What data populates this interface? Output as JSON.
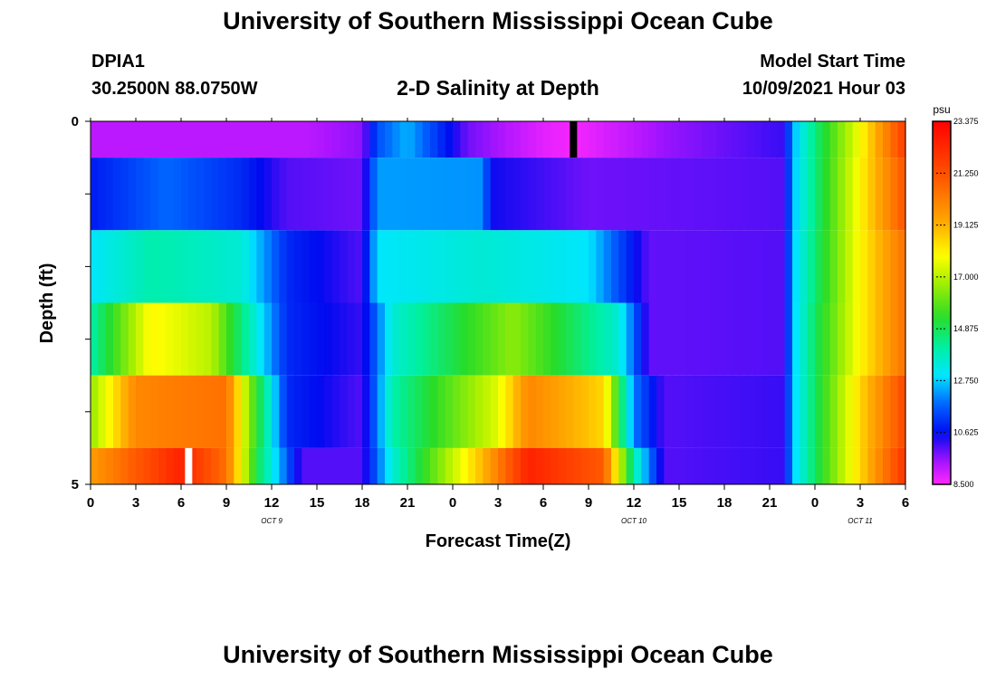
{
  "header": {
    "title": "University of Southern Mississippi Ocean Cube",
    "station": "DPIA1",
    "coords": "30.2500N  88.0750W",
    "model_label": "Model Start Time",
    "model_time": "10/09/2021 Hour 03"
  },
  "footer": {
    "title": "University of Southern Mississippi Ocean Cube"
  },
  "chart_data": {
    "type": "heatmap",
    "title": "2-D Salinity at Depth",
    "xlabel": "Forecast Time(Z)",
    "ylabel": "Depth (ft)",
    "x_hours": [
      0,
      54
    ],
    "x_tick_labels": [
      "0",
      "3",
      "6",
      "9",
      "12",
      "15",
      "18",
      "21",
      "0",
      "3",
      "6",
      "9",
      "12",
      "15",
      "18",
      "21",
      "0",
      "3",
      "6"
    ],
    "x_day_labels": [
      {
        "label": "OCT 9",
        "hour": 12
      },
      {
        "label": "OCT 10",
        "hour": 36
      },
      {
        "label": "OCT 11",
        "hour": 51
      }
    ],
    "y_tick_labels": [
      "0",
      "5"
    ],
    "ylim": [
      0,
      5
    ],
    "colorbar": {
      "unit": "psu",
      "labels": [
        "23.375",
        "21.250",
        "19.125",
        "17.000",
        "14.875",
        "12.750",
        "10.625",
        "8.500"
      ],
      "range": [
        8.5,
        23.375
      ]
    },
    "depth_layers": [
      {
        "depth_range": [
          0.0,
          0.5
        ],
        "keys": [
          [
            0,
            9.2
          ],
          [
            14,
            9.2
          ],
          [
            18,
            9.6
          ],
          [
            19,
            11.5
          ],
          [
            21,
            12.5
          ],
          [
            25,
            9.8
          ],
          [
            30,
            8.8
          ],
          [
            32,
            8.6
          ],
          [
            38,
            9.5
          ],
          [
            46,
            10.2
          ],
          [
            46.5,
            12.4
          ],
          [
            48,
            14.5
          ],
          [
            51,
            17.8
          ],
          [
            54,
            21.8
          ]
        ]
      },
      {
        "depth_range": [
          0.5,
          1.5
        ],
        "keys": [
          [
            0,
            10.8
          ],
          [
            5,
            11.8
          ],
          [
            10,
            11.0
          ],
          [
            13,
            10.0
          ],
          [
            18,
            9.8
          ],
          [
            19,
            12.3
          ],
          [
            26,
            12.2
          ],
          [
            26.5,
            10.5
          ],
          [
            33,
            9.8
          ],
          [
            46,
            10.0
          ],
          [
            46.5,
            12.5
          ],
          [
            48,
            14.5
          ],
          [
            51,
            18.0
          ],
          [
            54,
            21.2
          ]
        ]
      },
      {
        "depth_range": [
          1.5,
          2.5
        ],
        "keys": [
          [
            0,
            13.0
          ],
          [
            4,
            14.0
          ],
          [
            10,
            13.5
          ],
          [
            13,
            11.0
          ],
          [
            18,
            10.0
          ],
          [
            19,
            13.0
          ],
          [
            26,
            13.5
          ],
          [
            33,
            13.0
          ],
          [
            37,
            9.9
          ],
          [
            46,
            10.0
          ],
          [
            46.5,
            12.6
          ],
          [
            48,
            14.6
          ],
          [
            51,
            18.0
          ],
          [
            54,
            20.5
          ]
        ]
      },
      {
        "depth_range": [
          2.5,
          3.5
        ],
        "keys": [
          [
            0,
            14.0
          ],
          [
            4,
            18.0
          ],
          [
            8,
            17.0
          ],
          [
            10,
            14.5
          ],
          [
            13,
            11.0
          ],
          [
            18,
            10.2
          ],
          [
            20,
            13.5
          ],
          [
            28,
            16.5
          ],
          [
            35,
            13.5
          ],
          [
            37,
            9.9
          ],
          [
            46,
            10.0
          ],
          [
            46.5,
            12.6
          ],
          [
            48,
            14.8
          ],
          [
            51,
            18.0
          ],
          [
            54,
            20.5
          ]
        ]
      },
      {
        "depth_range": [
          3.5,
          4.5
        ],
        "keys": [
          [
            0,
            16.5
          ],
          [
            3,
            20.0
          ],
          [
            9,
            20.5
          ],
          [
            10.5,
            16.5
          ],
          [
            13,
            11.0
          ],
          [
            18,
            10.0
          ],
          [
            20,
            14.0
          ],
          [
            27,
            17.5
          ],
          [
            29,
            20.0
          ],
          [
            34,
            18.5
          ],
          [
            36,
            12.0
          ],
          [
            38,
            10.0
          ],
          [
            46,
            10.2
          ],
          [
            46.5,
            12.6
          ],
          [
            48,
            14.8
          ],
          [
            51,
            18.5
          ],
          [
            54,
            21.5
          ]
        ]
      },
      {
        "depth_range": [
          4.5,
          5.0
        ],
        "keys": [
          [
            0,
            19.5
          ],
          [
            6,
            22.5
          ],
          [
            9,
            20.5
          ],
          [
            11,
            15.0
          ],
          [
            14,
            10.0
          ],
          [
            18,
            10.0
          ],
          [
            20,
            13.5
          ],
          [
            26,
            19.0
          ],
          [
            29,
            22.5
          ],
          [
            34,
            21.0
          ],
          [
            36,
            14.0
          ],
          [
            38,
            10.0
          ],
          [
            46,
            10.2
          ],
          [
            46.5,
            12.6
          ],
          [
            48,
            14.8
          ],
          [
            51,
            18.5
          ],
          [
            54,
            22.0
          ]
        ]
      }
    ],
    "markers": [
      {
        "color": "#000000",
        "hour": 32,
        "depth_range": [
          0.0,
          0.5
        ]
      },
      {
        "color": "#ffffff",
        "hour": 6.5,
        "depth_range": [
          4.5,
          5.0
        ]
      }
    ]
  }
}
